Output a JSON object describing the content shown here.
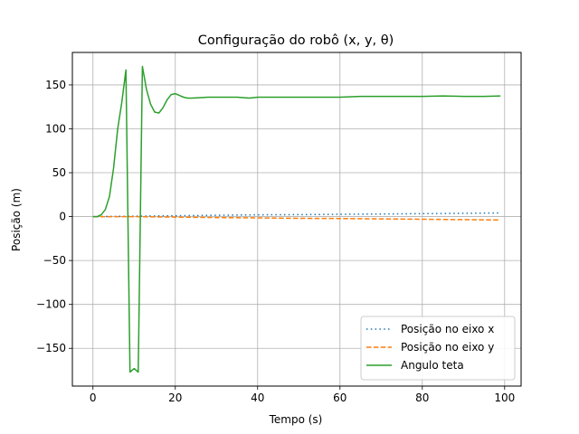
{
  "chart_data": {
    "type": "line",
    "title": "Configuração do robô (x, y, θ)",
    "xlabel": "Tempo (s)",
    "ylabel": "Posição (m)",
    "xlim": [
      -5,
      104
    ],
    "ylim": [
      -193,
      187
    ],
    "xticks": [
      0,
      20,
      40,
      60,
      80,
      100
    ],
    "yticks": [
      150,
      100,
      50,
      0,
      -50,
      -100,
      -150
    ],
    "ytick_labels": [
      "150",
      "100",
      "50",
      "0",
      "−50",
      "−100",
      "−150"
    ],
    "grid": true,
    "legend_position": "lower-right",
    "series": [
      {
        "name": "Posição no eixo x",
        "color": "#1f77b4",
        "style": "dotted",
        "x": [
          0,
          10,
          20,
          30,
          40,
          50,
          60,
          70,
          80,
          90,
          99
        ],
        "y": [
          0,
          0.5,
          1,
          1.5,
          2,
          2.3,
          2.7,
          3,
          3.4,
          3.8,
          4.2
        ]
      },
      {
        "name": "Posição no eixo y",
        "color": "#ff7f0e",
        "style": "dashed",
        "x": [
          0,
          10,
          20,
          30,
          40,
          50,
          60,
          70,
          80,
          90,
          99
        ],
        "y": [
          0,
          0,
          -0.5,
          -1,
          -1.5,
          -2,
          -2.2,
          -2.6,
          -3,
          -3.4,
          -3.8
        ]
      },
      {
        "name": "Angulo teta",
        "color": "#2ca02c",
        "style": "solid",
        "x": [
          0,
          1,
          2,
          3,
          4,
          5,
          6,
          7,
          8,
          9,
          10,
          11,
          12,
          13,
          14,
          15,
          16,
          17,
          18,
          19,
          20,
          21,
          22,
          23,
          24,
          26,
          28,
          30,
          35,
          38,
          40,
          45,
          50,
          55,
          60,
          65,
          70,
          75,
          80,
          85,
          90,
          95,
          99
        ],
        "y": [
          0,
          0,
          2,
          8,
          23,
          55,
          100,
          130,
          167,
          -177,
          -173,
          -177,
          171,
          145,
          128,
          119,
          118,
          124,
          133,
          139,
          140,
          138,
          136,
          135,
          135,
          135.5,
          136,
          136,
          136,
          135,
          136,
          136,
          136,
          136,
          136,
          137,
          137,
          137,
          137,
          137.5,
          137,
          137,
          137.5
        ]
      }
    ]
  }
}
